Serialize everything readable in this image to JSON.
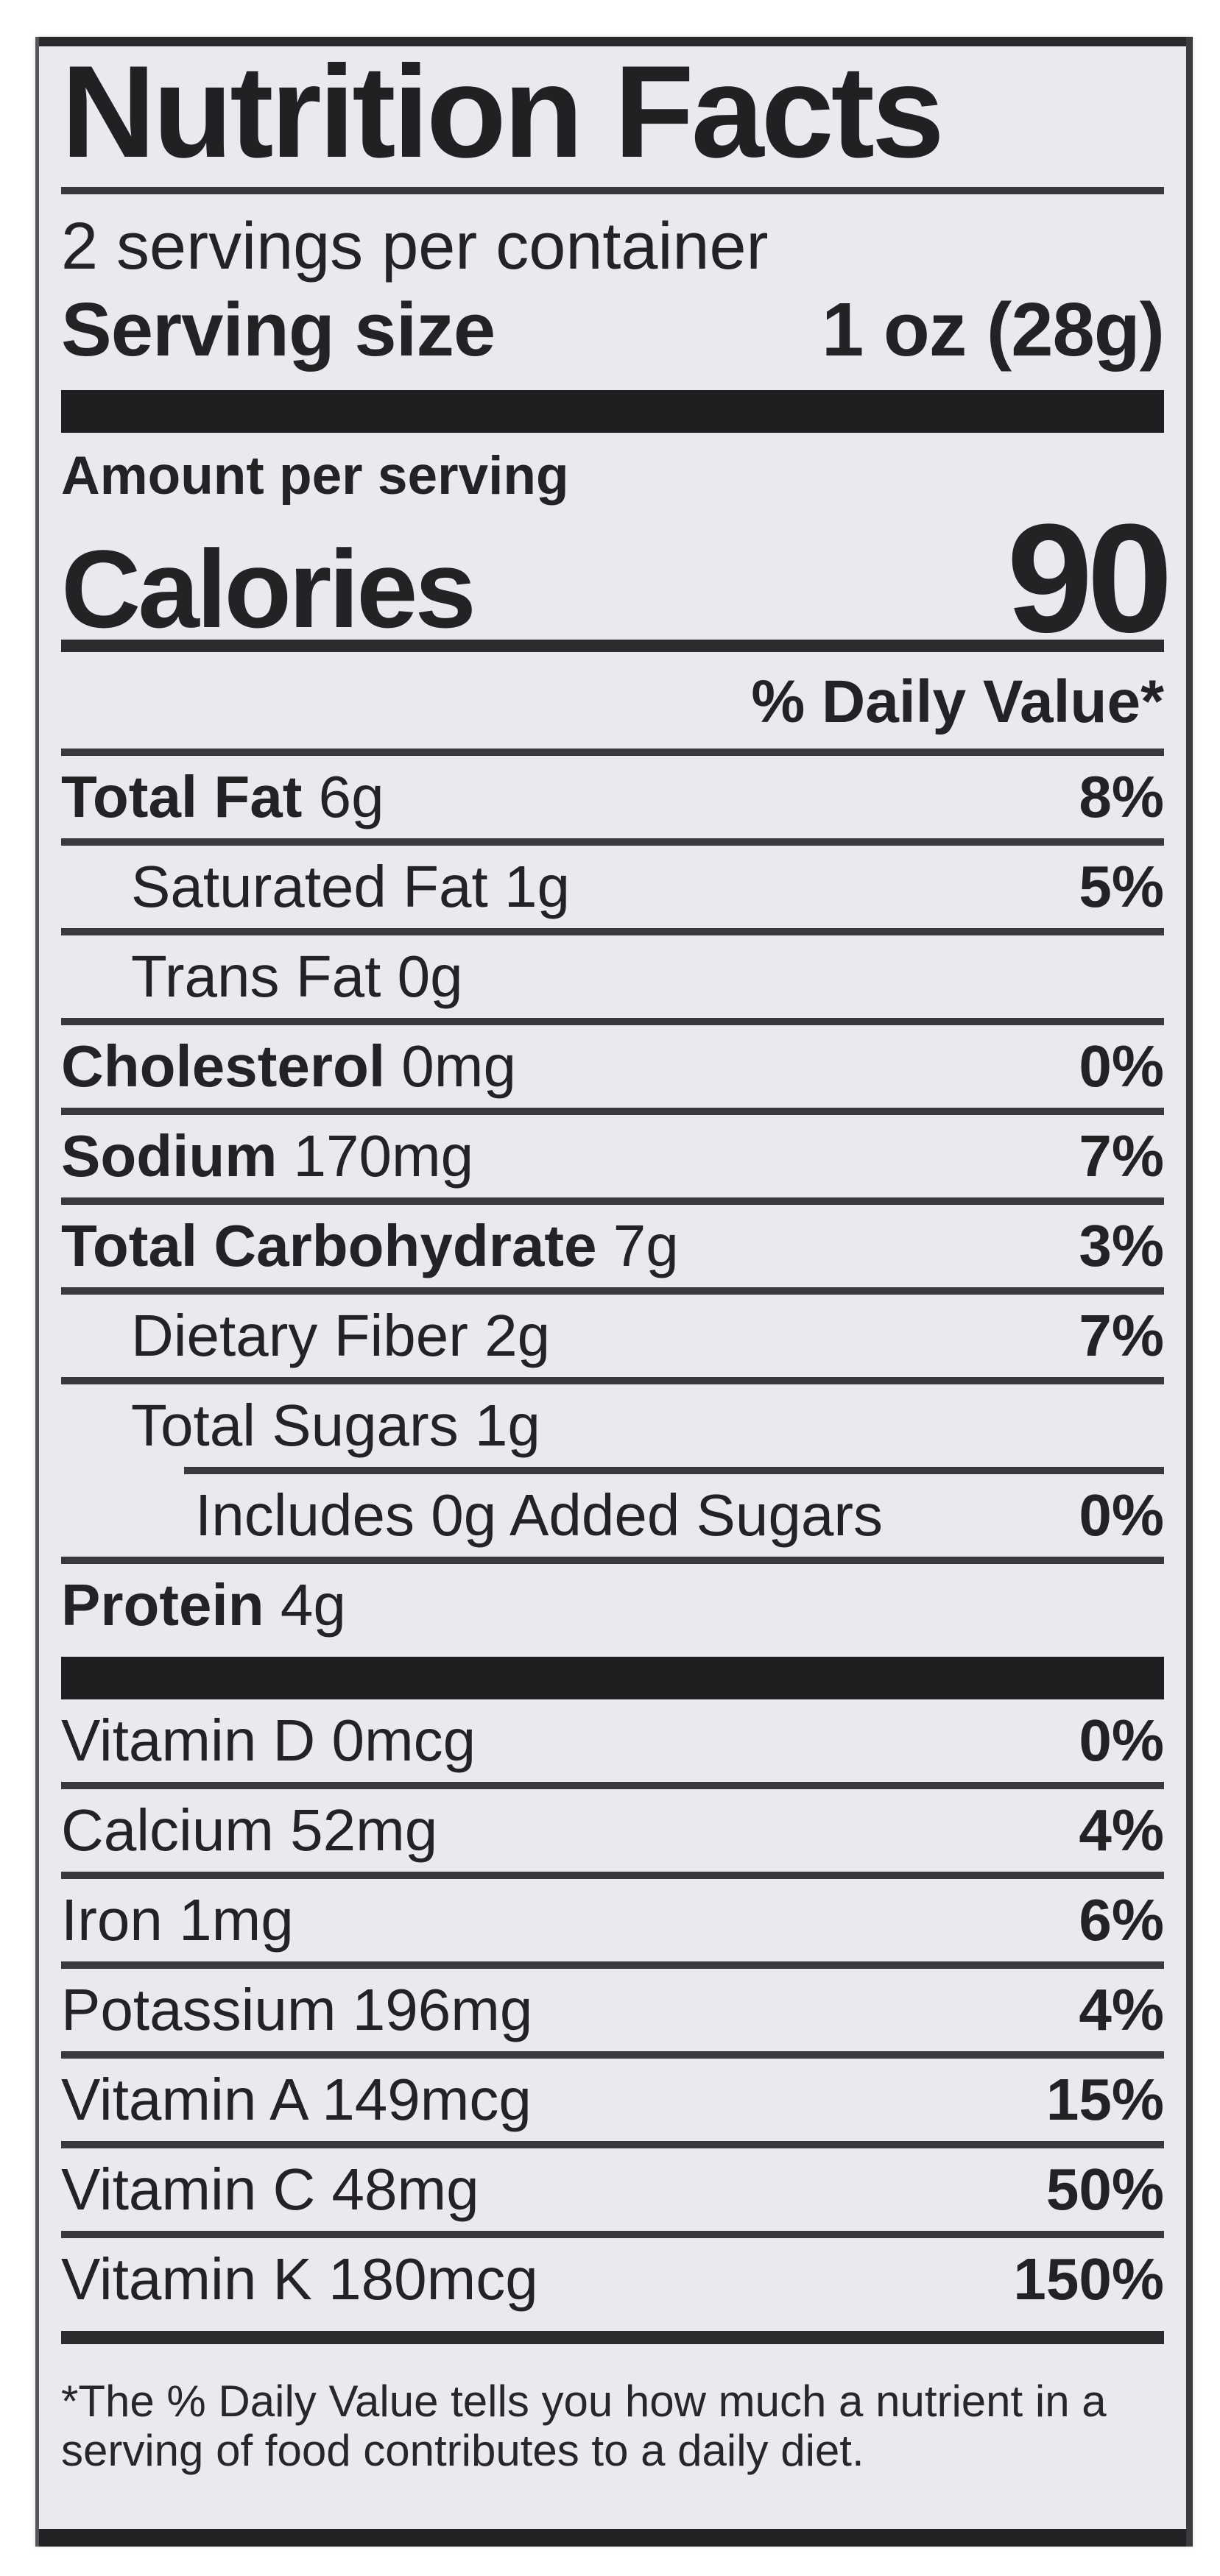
{
  "colors": {
    "label_background": "#e9e9ee",
    "ink": "#232326",
    "thick_bar": "#1f1f22",
    "page_background": "#ffffff"
  },
  "label": {
    "title": "Nutrition Facts",
    "servings_per_container": "2 servings per container",
    "serving_size": {
      "label": "Serving size",
      "value": "1 oz (28g)"
    },
    "amount_per_serving": "Amount per serving",
    "calories": {
      "label": "Calories",
      "value": "90"
    },
    "daily_value_header": "% Daily Value*",
    "nutrients": [
      {
        "name": "Total Fat",
        "amount": "6g",
        "percent": "8%",
        "bold": true,
        "indent": 0,
        "rule": "thin"
      },
      {
        "name": "Saturated Fat",
        "amount": "1g",
        "percent": "5%",
        "bold": false,
        "indent": 1,
        "rule": "thin"
      },
      {
        "name": "Trans Fat",
        "amount": "0g",
        "percent": "",
        "bold": false,
        "indent": 1,
        "rule": "thin"
      },
      {
        "name": "Cholesterol",
        "amount": "0mg",
        "percent": "0%",
        "bold": true,
        "indent": 0,
        "rule": "thin"
      },
      {
        "name": "Sodium",
        "amount": "170mg",
        "percent": "7%",
        "bold": true,
        "indent": 0,
        "rule": "thin"
      },
      {
        "name": "Total Carbohydrate",
        "amount": "7g",
        "percent": "3%",
        "bold": true,
        "indent": 0,
        "rule": "thin"
      },
      {
        "name": "Dietary Fiber",
        "amount": "2g",
        "percent": "7%",
        "bold": false,
        "indent": 1,
        "rule": "thin"
      },
      {
        "name": "Total Sugars",
        "amount": "1g",
        "percent": "",
        "bold": false,
        "indent": 1,
        "rule": "sub"
      },
      {
        "name": "Includes 0g Added Sugars",
        "amount": "",
        "percent": "0%",
        "bold": false,
        "indent": 2,
        "rule": "thin"
      },
      {
        "name": "Protein",
        "amount": "4g",
        "percent": "",
        "bold": true,
        "indent": 0,
        "rule": "none"
      }
    ],
    "vitamins": [
      {
        "name": "Vitamin D",
        "amount": "0mcg",
        "percent": "0%",
        "bold": false,
        "indent": 0,
        "rule": "thin"
      },
      {
        "name": "Calcium",
        "amount": "52mg",
        "percent": "4%",
        "bold": false,
        "indent": 0,
        "rule": "thin"
      },
      {
        "name": "Iron",
        "amount": "1mg",
        "percent": "6%",
        "bold": false,
        "indent": 0,
        "rule": "thin"
      },
      {
        "name": "Potassium",
        "amount": "196mg",
        "percent": "4%",
        "bold": false,
        "indent": 0,
        "rule": "thin"
      },
      {
        "name": "Vitamin A",
        "amount": "149mcg",
        "percent": "15%",
        "bold": false,
        "indent": 0,
        "rule": "thin"
      },
      {
        "name": "Vitamin C",
        "amount": "48mg",
        "percent": "50%",
        "bold": false,
        "indent": 0,
        "rule": "thin"
      },
      {
        "name": "Vitamin K",
        "amount": "180mcg",
        "percent": "150%",
        "bold": false,
        "indent": 0,
        "rule": "med2"
      }
    ],
    "footnote": {
      "line1": "*The % Daily Value tells you how much a nutrient in a",
      "line2": "serving of food contributes to a daily diet."
    }
  }
}
